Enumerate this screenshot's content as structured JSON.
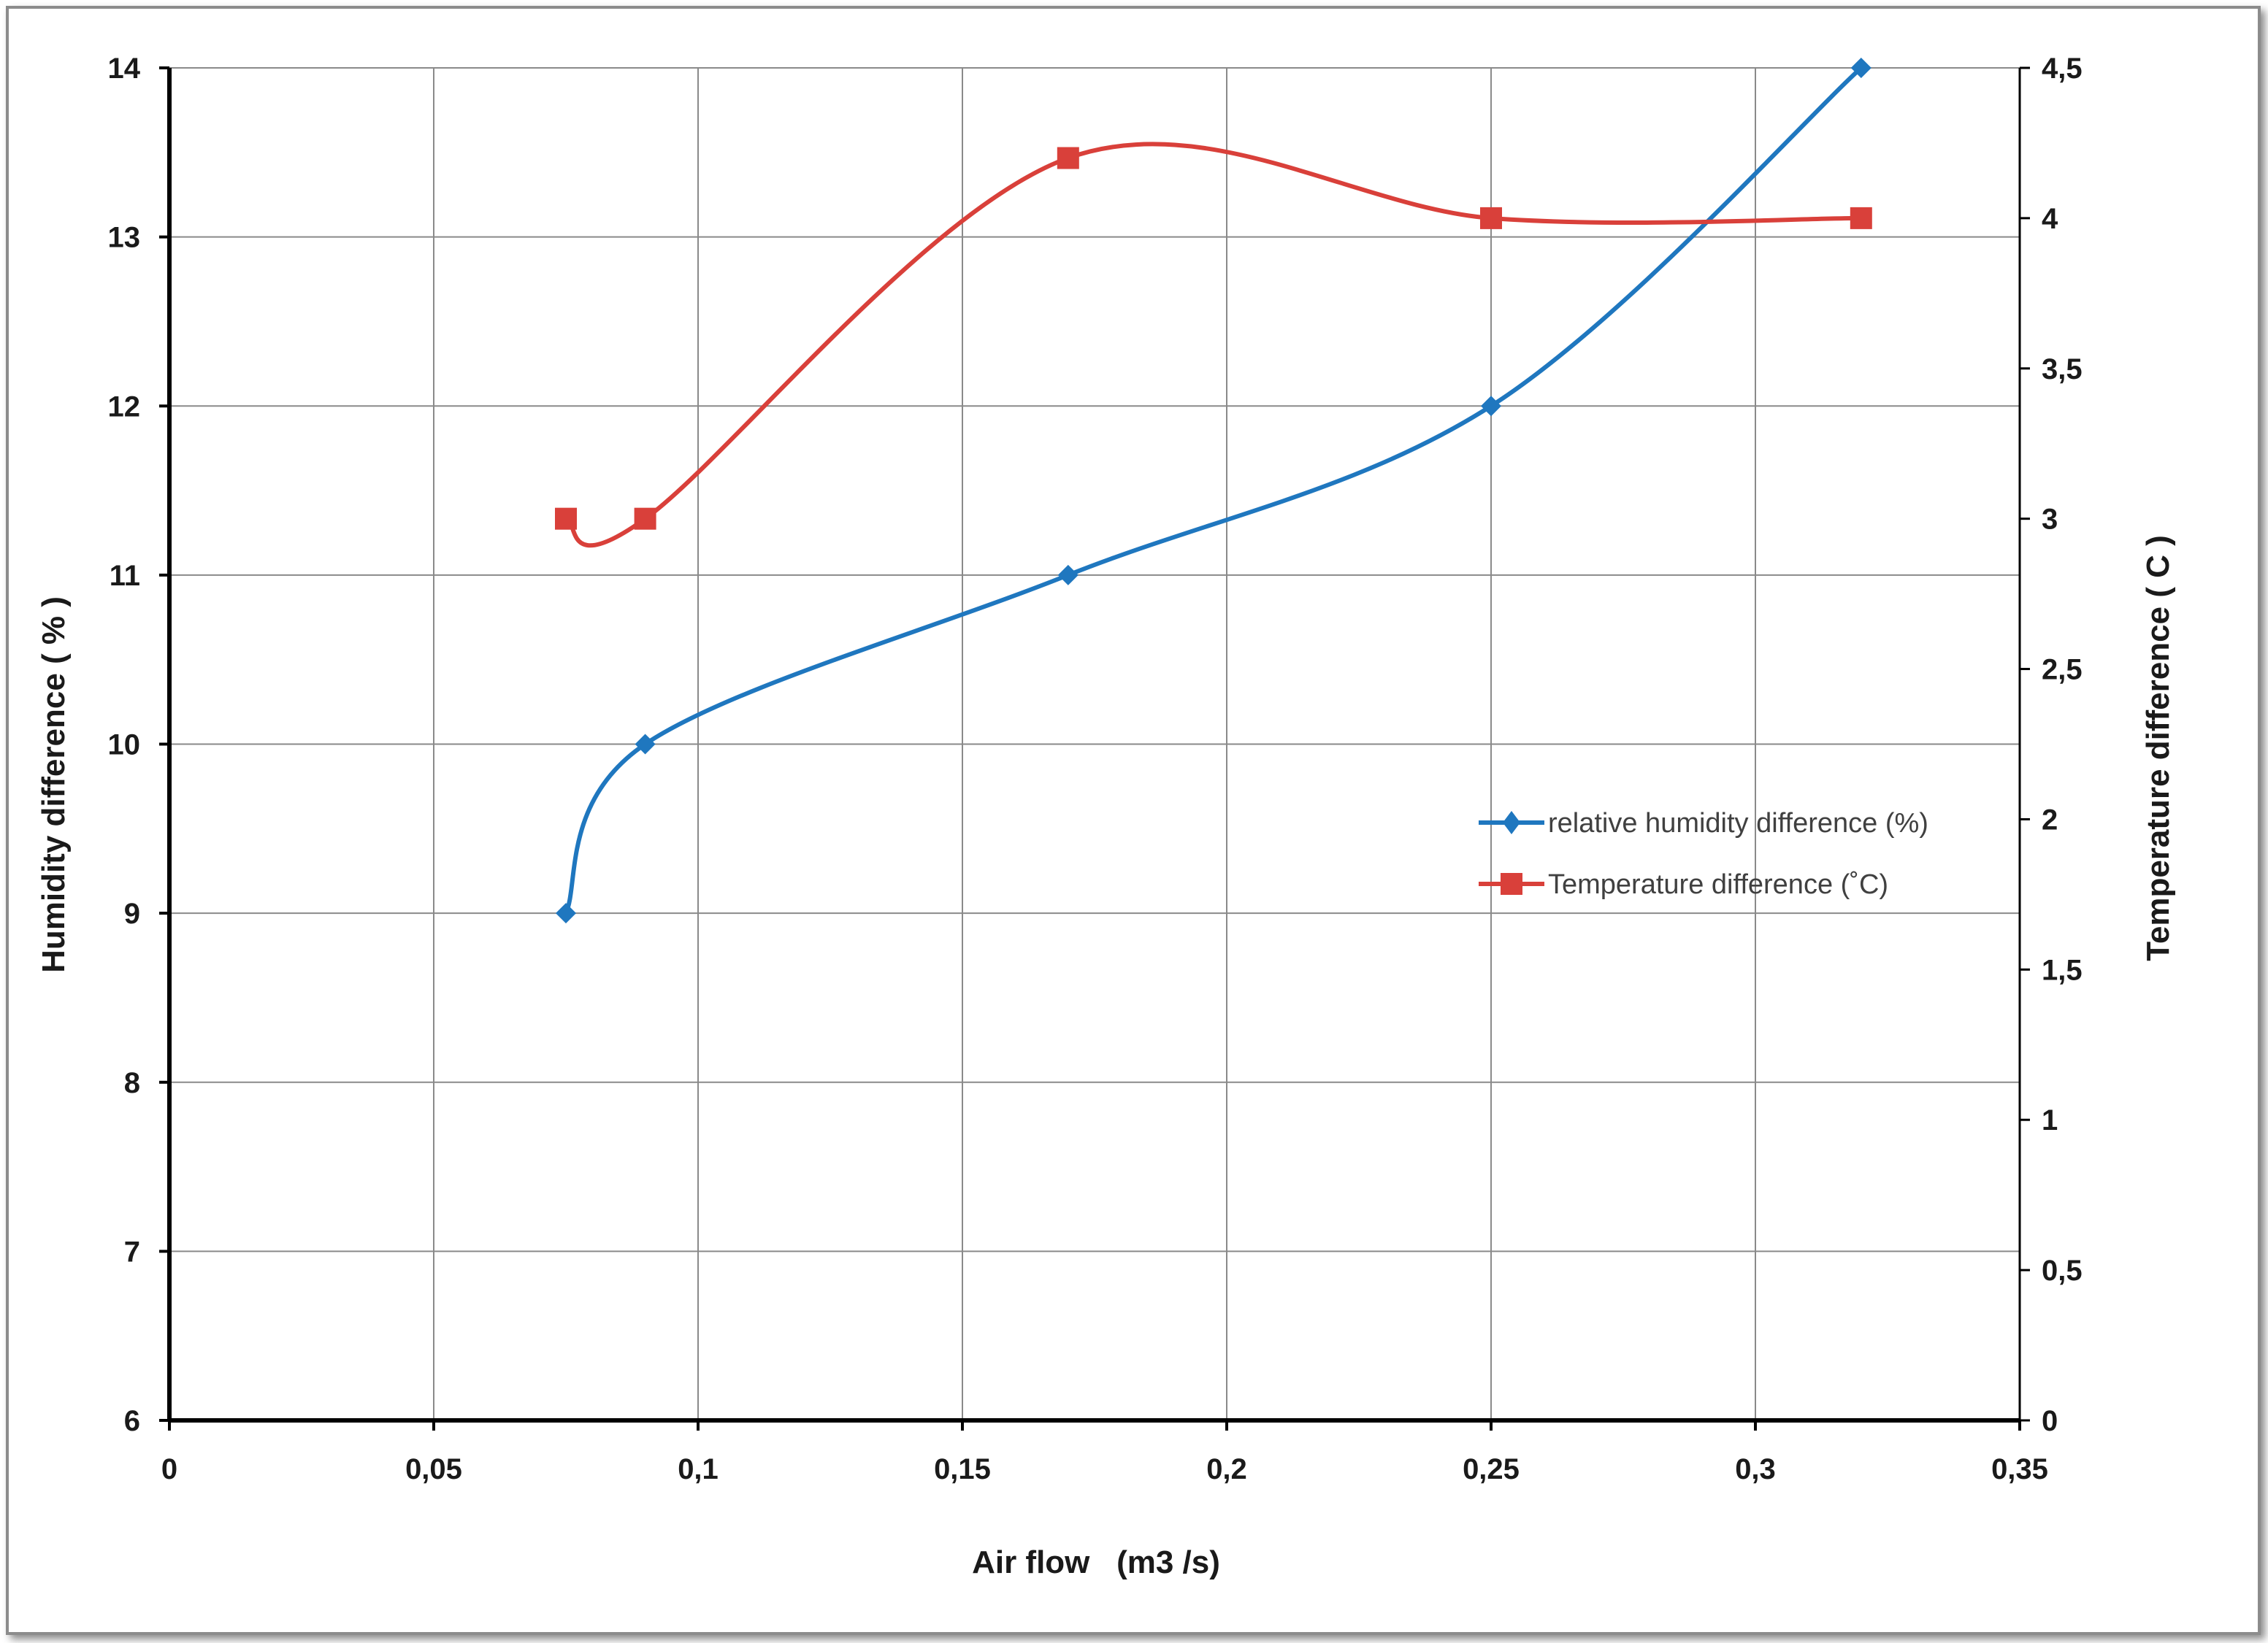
{
  "chart_data": {
    "type": "line",
    "title": "",
    "xlabel": "Air flow   (m3 /s)",
    "ylabel": "Humidity difference ( % )",
    "y2label": "Temperature difference ( C )",
    "xlim": [
      0,
      0.35
    ],
    "ylim": [
      6,
      14
    ],
    "y2lim": [
      0,
      4.5
    ],
    "x_ticks": [
      0,
      0.05,
      0.1,
      0.15,
      0.2,
      0.25,
      0.3,
      0.35
    ],
    "x_tick_labels": [
      "0",
      "0,05",
      "0,1",
      "0,15",
      "0,2",
      "0,25",
      "0,3",
      "0,35"
    ],
    "y_ticks": [
      6,
      7,
      8,
      9,
      10,
      11,
      12,
      13,
      14
    ],
    "y_tick_labels": [
      "6",
      "7",
      "8",
      "9",
      "10",
      "11",
      "12",
      "13",
      "14"
    ],
    "y2_ticks": [
      0,
      0.5,
      1,
      1.5,
      2,
      2.5,
      3,
      3.5,
      4,
      4.5
    ],
    "y2_tick_labels": [
      "0",
      "0,5",
      "1",
      "1,5",
      "2",
      "2,5",
      "3",
      "3,5",
      "4",
      "4,5"
    ],
    "grid": true,
    "smooth": true,
    "legend_position": "right-middle",
    "series": [
      {
        "name": "relative humidity difference (%)",
        "axis": "left",
        "marker": "diamond",
        "color": "#1f77bf",
        "x": [
          0.075,
          0.09,
          0.17,
          0.25,
          0.32
        ],
        "y": [
          9,
          10,
          11,
          12,
          14
        ]
      },
      {
        "name": "Temperature difference (˚C)",
        "axis": "right",
        "marker": "square",
        "color": "#d9403a",
        "x": [
          0.075,
          0.09,
          0.17,
          0.25,
          0.32
        ],
        "y": [
          3,
          3,
          4.2,
          4,
          4
        ]
      }
    ]
  }
}
